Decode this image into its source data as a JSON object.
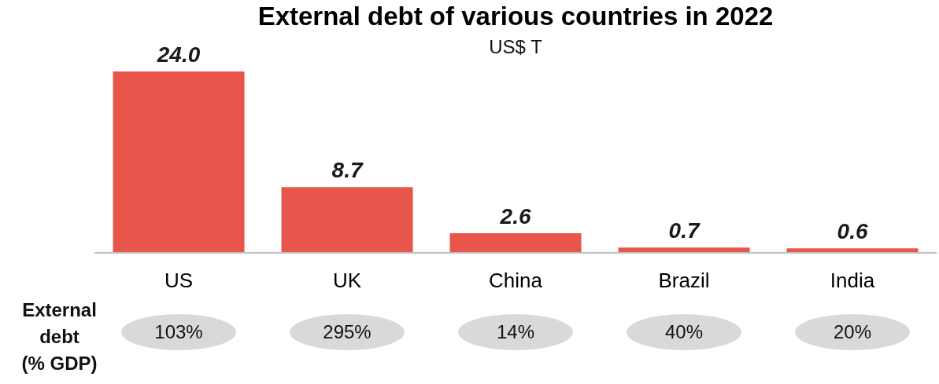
{
  "chart_data": {
    "type": "bar",
    "title": "External debt of various countries in 2022",
    "subtitle": "US$ T",
    "categories": [
      "US",
      "UK",
      "China",
      "Brazil",
      "India"
    ],
    "values": [
      24.0,
      8.7,
      2.6,
      0.7,
      0.6
    ],
    "color": "#e8564b",
    "value_labels": [
      "24.0",
      "8.7",
      "2.6",
      "0.7",
      "0.6"
    ],
    "annotations": [
      "External debt (% GDP)",
      "103%",
      "295%",
      "14%",
      "40%",
      "20%"
    ],
    "grid": false,
    "legend": false
  }
}
